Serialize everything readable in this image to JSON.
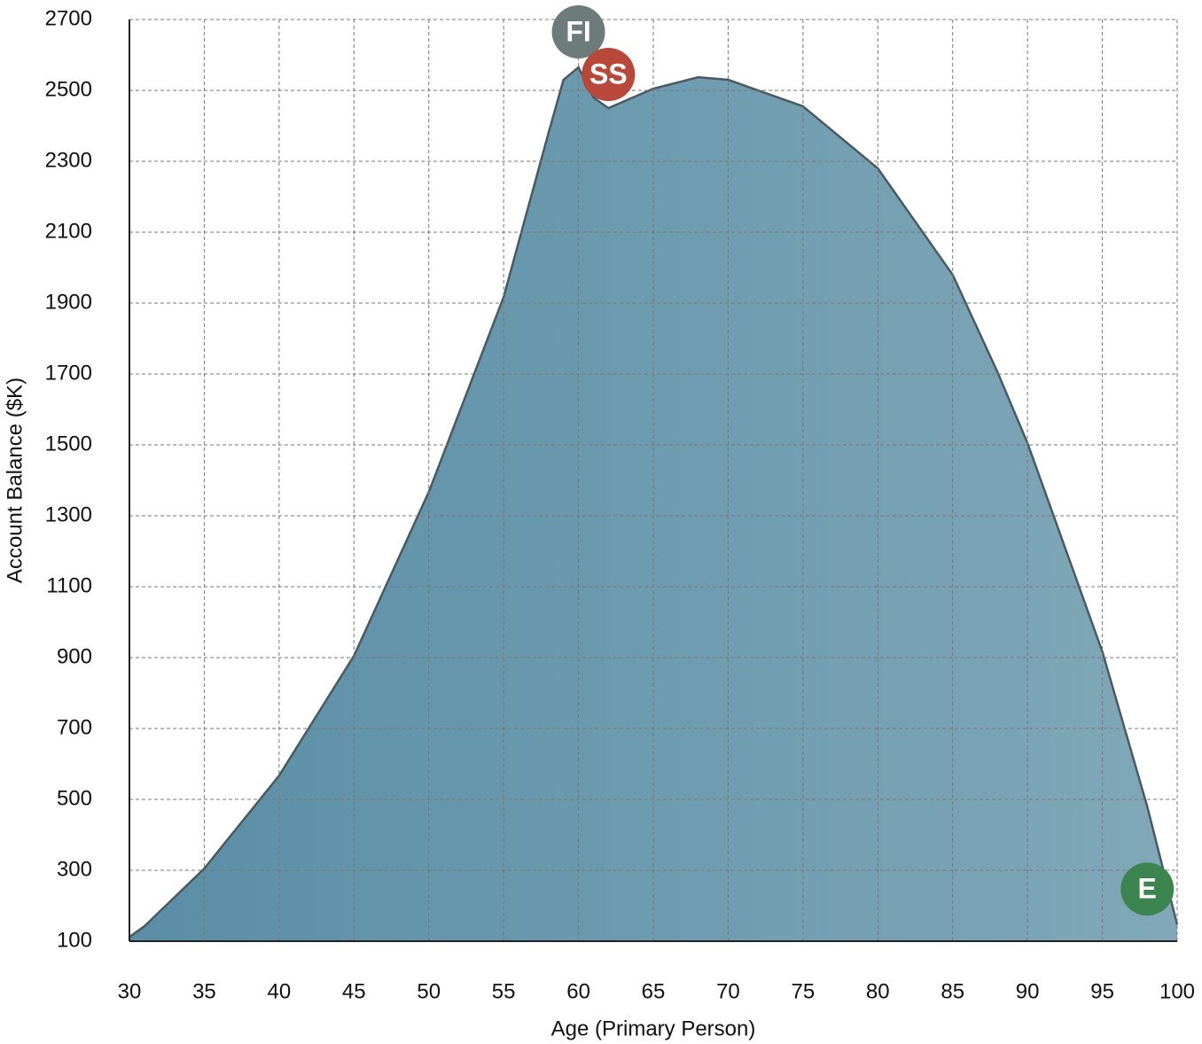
{
  "chart_data": {
    "type": "area",
    "x_label": "Age (Primary Person)",
    "y_label": "Account Balance ($K)",
    "x": [
      30,
      31,
      35,
      40,
      45,
      50,
      55,
      58,
      59,
      60,
      61,
      62,
      65,
      68,
      70,
      75,
      80,
      85,
      88,
      90,
      95,
      98,
      100
    ],
    "series": [
      {
        "name": "Account Balance",
        "color": "#6797ad",
        "values": [
          112,
          142,
          305,
          567,
          905,
          1367,
          1917,
          2380,
          2530,
          2565,
          2480,
          2450,
          2505,
          2537,
          2530,
          2455,
          2280,
          1980,
          1705,
          1505,
          917,
          480,
          147
        ]
      }
    ],
    "xlim": [
      30,
      100
    ],
    "xticks": [
      30,
      35,
      40,
      45,
      50,
      55,
      60,
      65,
      70,
      75,
      80,
      85,
      90,
      95,
      100
    ],
    "ylim": [
      100,
      2700
    ],
    "yticks": [
      100,
      300,
      500,
      700,
      900,
      1100,
      1300,
      1500,
      1700,
      1900,
      2100,
      2300,
      2500,
      2700
    ],
    "grid": true,
    "markers": [
      {
        "label": "FI",
        "x": 60,
        "y": 2665,
        "color": "#6e7b7b"
      },
      {
        "label": "SS",
        "x": 62,
        "y": 2545,
        "color": "#b8483a"
      },
      {
        "label": "E",
        "x": 98,
        "y": 247,
        "color": "#3d8550"
      }
    ]
  }
}
